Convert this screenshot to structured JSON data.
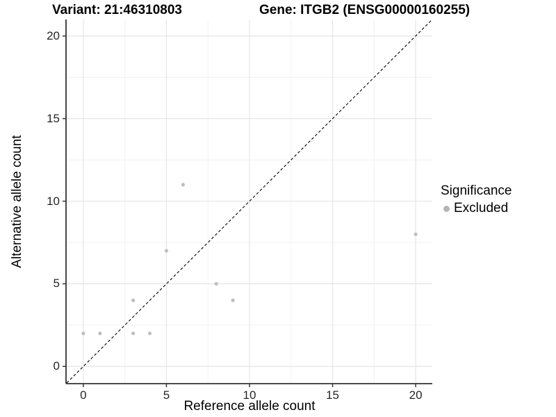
{
  "header": {
    "variant_title": "Variant: 21:46310803",
    "gene_title": "Gene: ITGB2 (ENSG00000160255)"
  },
  "chart_data": {
    "type": "scatter",
    "title_left": "Variant: 21:46310803",
    "title_right": "Gene: ITGB2 (ENSG00000160255)",
    "xlabel": "Reference allele count",
    "ylabel": "Alternative allele count",
    "xlim": [
      -1,
      21
    ],
    "ylim": [
      -1,
      21
    ],
    "x_ticks": [
      0,
      5,
      10,
      15,
      20
    ],
    "y_ticks": [
      0,
      5,
      10,
      15,
      20
    ],
    "x_minor_ticks": [
      2.5,
      7.5,
      12.5,
      17.5
    ],
    "y_minor_ticks": [
      2.5,
      7.5,
      12.5,
      17.5
    ],
    "grid": true,
    "series": [
      {
        "name": "Excluded",
        "color": "#bebebe",
        "points": [
          [
            0,
            2
          ],
          [
            1,
            2
          ],
          [
            3,
            2
          ],
          [
            3,
            4
          ],
          [
            4,
            2
          ],
          [
            5,
            7
          ],
          [
            6,
            11
          ],
          [
            8,
            5
          ],
          [
            9,
            4
          ],
          [
            20,
            8
          ]
        ]
      }
    ],
    "reference_line": {
      "type": "identity",
      "style": "dashed",
      "color": "#000000"
    },
    "legend": {
      "title": "Significance",
      "position": "right",
      "items": [
        {
          "label": "Excluded",
          "color": "#b5b5b5",
          "marker": "circle"
        }
      ]
    },
    "colors": {
      "point": "#bebebe",
      "grid_major": "#e5e5e5",
      "grid_minor": "#f2f2f2",
      "axis": "#333333",
      "tick": "#333333"
    }
  }
}
